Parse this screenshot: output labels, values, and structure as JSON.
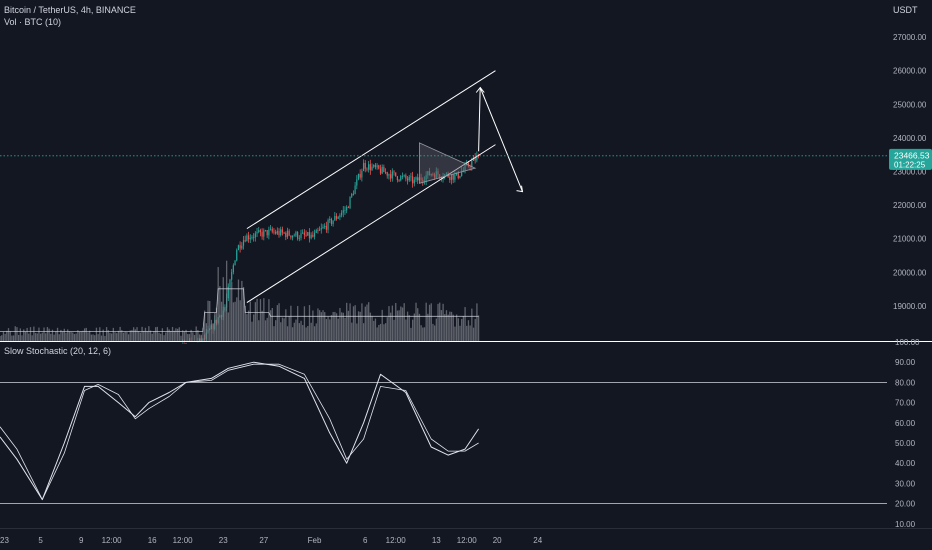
{
  "header": {
    "symbol": "Bitcoin / TetherUS, 4h, BINANCE",
    "volume": "Vol · BTC (10)",
    "indicator": "Slow Stochastic (20, 12, 6)",
    "currency": "USDT"
  },
  "price_tag": {
    "price": "23466.53",
    "countdown": "01:22:25"
  },
  "colors": {
    "background": "#131722",
    "bull": "#26a69a",
    "bear": "#ef5350",
    "drawing": "#ffffff",
    "pattern_fill": "#5a5d66",
    "price_tag": "#26a69a",
    "volume_bar": "#7a7d85"
  },
  "chart_data": [
    {
      "type": "candlestick",
      "title": "Bitcoin / TetherUS, 4h, BINANCE",
      "ylim": [
        17900,
        27900
      ],
      "yticks": [
        "27000.00",
        "26000.00",
        "25000.00",
        "24000.00",
        "23000.00",
        "22000.00",
        "21000.00",
        "20000.00",
        "19000.00"
      ],
      "last_price": 23466.53,
      "key_prices": [
        {
          "t": 0,
          "price": 16550
        },
        {
          "t": 60,
          "price": 17150
        },
        {
          "t": 120,
          "price": 17950
        },
        {
          "t": 133,
          "price": 18950
        },
        {
          "t": 140,
          "price": 20700
        },
        {
          "t": 145,
          "price": 21050
        },
        {
          "t": 160,
          "price": 21200
        },
        {
          "t": 185,
          "price": 21050
        },
        {
          "t": 205,
          "price": 21900
        },
        {
          "t": 215,
          "price": 23200
        },
        {
          "t": 232,
          "price": 22900
        },
        {
          "t": 245,
          "price": 22700
        },
        {
          "t": 255,
          "price": 22950
        },
        {
          "t": 270,
          "price": 22850
        },
        {
          "t": 283,
          "price": 23466.53
        }
      ],
      "drawings": [
        {
          "name": "channel-upper",
          "from": {
            "t": 146,
            "price": 21300
          },
          "to": {
            "t": 293,
            "price": 26000
          }
        },
        {
          "name": "channel-lower",
          "from": {
            "t": 146,
            "price": 19100
          },
          "to": {
            "t": 293,
            "price": 23800
          }
        },
        {
          "name": "projection",
          "points": [
            {
              "t": 283,
              "price": 23600
            },
            {
              "t": 284,
              "price": 25500
            },
            {
              "t": 309,
              "price": 22400
            }
          ]
        }
      ]
    },
    {
      "type": "bar",
      "title": "Vol · BTC (10)",
      "series": [
        {
          "name": "Vol · BTC",
          "values_relative_to_range": "low volume early, spike near Jan 12, moderate afterwards"
        }
      ]
    },
    {
      "type": "line",
      "title": "Slow Stochastic (20, 12, 6)",
      "ylim": [
        12,
        100
      ],
      "yticks": [
        "100.00",
        "90.00",
        "80.00",
        "70.00",
        "60.00",
        "50.00",
        "40.00",
        "30.00",
        "20.00",
        "10.00"
      ],
      "bands": [
        80,
        20
      ],
      "series": [
        {
          "name": "%K",
          "points": [
            [
              0,
              53
            ],
            [
              10,
              42
            ],
            [
              25,
              22
            ],
            [
              38,
              50
            ],
            [
              50,
              78
            ],
            [
              58,
              78
            ],
            [
              70,
              70
            ],
            [
              80,
              63
            ],
            [
              88,
              70
            ],
            [
              100,
              75
            ],
            [
              110,
              80
            ],
            [
              125,
              82
            ],
            [
              135,
              87
            ],
            [
              150,
              90
            ],
            [
              165,
              88
            ],
            [
              180,
              82
            ],
            [
              195,
              55
            ],
            [
              205,
              40
            ],
            [
              215,
              60
            ],
            [
              225,
              84
            ],
            [
              240,
              75
            ],
            [
              255,
              48
            ],
            [
              265,
              44
            ],
            [
              275,
              47
            ],
            [
              283,
              57
            ]
          ]
        },
        {
          "name": "%D",
          "points": [
            [
              0,
              58
            ],
            [
              10,
              47
            ],
            [
              25,
              22
            ],
            [
              38,
              45
            ],
            [
              50,
              76
            ],
            [
              58,
              79
            ],
            [
              70,
              74
            ],
            [
              80,
              62
            ],
            [
              88,
              67
            ],
            [
              100,
              73
            ],
            [
              110,
              80
            ],
            [
              125,
              81
            ],
            [
              135,
              86
            ],
            [
              150,
              89
            ],
            [
              165,
              89
            ],
            [
              180,
              84
            ],
            [
              195,
              62
            ],
            [
              205,
              42
            ],
            [
              215,
              52
            ],
            [
              225,
              78
            ],
            [
              240,
              76
            ],
            [
              255,
              52
            ],
            [
              265,
              46
            ],
            [
              275,
              46
            ],
            [
              283,
              50
            ]
          ]
        }
      ]
    }
  ],
  "x_axis": {
    "ticks": [
      {
        "t": 0,
        "label": "2023"
      },
      {
        "t": 24,
        "label": "5"
      },
      {
        "t": 48,
        "label": "9"
      },
      {
        "t": 66,
        "label": "12:00"
      },
      {
        "t": 90,
        "label": "16"
      },
      {
        "t": 108,
        "label": "12:00"
      },
      {
        "t": 132,
        "label": "23"
      },
      {
        "t": 156,
        "label": "27"
      },
      {
        "t": 186,
        "label": "Feb"
      },
      {
        "t": 216,
        "label": "6"
      },
      {
        "t": 234,
        "label": "12:00"
      },
      {
        "t": 258,
        "label": "13"
      },
      {
        "t": 276,
        "label": "12:00"
      },
      {
        "t": 294,
        "label": "20"
      },
      {
        "t": 318,
        "label": "24"
      }
    ]
  }
}
